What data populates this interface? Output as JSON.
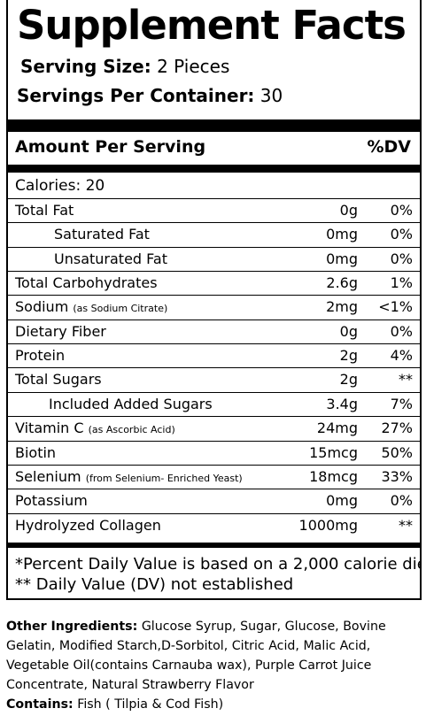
{
  "title": "Supplement Facts",
  "serving_size": {
    "label": "Serving Size:",
    "value": "2 Pieces"
  },
  "servings_per_container": {
    "label": "Servings Per Container:",
    "value": "30"
  },
  "header": {
    "amount": "Amount Per Serving",
    "dv": "%DV"
  },
  "calories": "Calories: 20",
  "rows": [
    {
      "name": "Total Fat",
      "sub": "",
      "amount": "0g",
      "dv": "0%"
    },
    {
      "name": "Saturated Fat",
      "sub": "",
      "amount": "0mg",
      "dv": "0%"
    },
    {
      "name": "Unsaturated Fat",
      "sub": "",
      "amount": "0mg",
      "dv": "0%"
    },
    {
      "name": "Total Carbohydrates",
      "sub": "",
      "amount": "2.6g",
      "dv": "1%"
    },
    {
      "name": "Sodium",
      "sub": "(as Sodium Citrate)",
      "amount": "2mg",
      "dv": "<1%"
    },
    {
      "name": "Dietary Fiber",
      "sub": "",
      "amount": "0g",
      "dv": "0%"
    },
    {
      "name": "Protein",
      "sub": "",
      "amount": "2g",
      "dv": "4%"
    },
    {
      "name": "Total Sugars",
      "sub": "",
      "amount": "2g",
      "dv": "**"
    },
    {
      "name": "Included Added Sugars",
      "sub": "",
      "amount": "3.4g",
      "dv": "7%"
    },
    {
      "name": "Vitamin C",
      "sub": "(as Ascorbic Acid)",
      "amount": "24mg",
      "dv": "27%"
    },
    {
      "name": "Biotin",
      "sub": "",
      "amount": "15mcg",
      "dv": "50%"
    },
    {
      "name": "Selenium",
      "sub": "(from Selenium- Enriched Yeast)",
      "amount": "18mcg",
      "dv": "33%"
    },
    {
      "name": "Potassium",
      "sub": "",
      "amount": "0mg",
      "dv": "0%"
    },
    {
      "name": "Hydrolyzed Collagen",
      "sub": "",
      "amount": "1000mg",
      "dv": "**"
    }
  ],
  "footnotes": [
    "*Percent Daily Value is based on a 2,000 calorie die",
    "** Daily Value (DV) not established"
  ],
  "other_ingredients": {
    "label": "Other Ingredients:",
    "text": "Glucose Syrup, Sugar, Glucose, Bovine Gelatin, Modified Starch,D-Sorbitol, Citric Acid, Malic Acid, Vegetable Oil(contains Carnauba wax), Purple Carrot Juice Concentrate, Natural Strawberry Flavor"
  },
  "contains": {
    "label": "Contains:",
    "text": "Fish ( Tilpia & Cod Fish)"
  }
}
